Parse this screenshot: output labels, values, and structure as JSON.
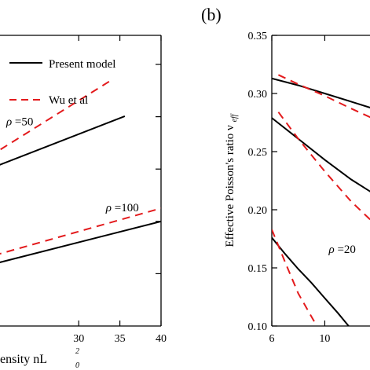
{
  "panel_label": "(b)",
  "chart_data": [
    {
      "type": "line",
      "title": "",
      "xlabel": "ensity nL",
      "xlabel_sup": "2",
      "xlabel_sub": "0",
      "ylabel": "",
      "xlim": [
        15,
        40
      ],
      "ylim": [
        0,
        10
      ],
      "xticks": [
        30,
        35,
        40
      ],
      "legend": {
        "placement": "top-left",
        "entries": [
          {
            "label": "Present model",
            "style": "solid",
            "color": "#000000"
          },
          {
            "label": "Wu et al",
            "style": "dashed",
            "color": "#e31a1c"
          }
        ]
      },
      "annotations": [
        {
          "text": "=50",
          "symbol": "ρ",
          "x": 21.2,
          "y": 6.9
        },
        {
          "text": "=100",
          "symbol": "ρ",
          "x": 33.3,
          "y": 3.95
        }
      ],
      "series": [
        {
          "style": "solid",
          "color": "#000000",
          "x": [
            15,
            35.6
          ],
          "y": [
            4.95,
            7.22
          ]
        },
        {
          "style": "dashed",
          "color": "#e31a1c",
          "x": [
            15,
            34.2
          ],
          "y": [
            5.1,
            8.5
          ]
        },
        {
          "style": "solid",
          "color": "#000000",
          "x": [
            15,
            40
          ],
          "y": [
            1.8,
            3.6
          ]
        },
        {
          "style": "dashed",
          "color": "#e31a1c",
          "x": [
            15,
            40
          ],
          "y": [
            2.05,
            4.05
          ]
        }
      ]
    },
    {
      "type": "line",
      "title": "",
      "xlabel": "",
      "ylabel": "Effective Poisson's ratio ν",
      "ylabel_sub": "eff",
      "xlim": [
        6,
        20
      ],
      "ylim": [
        0.1,
        0.35
      ],
      "xticks": [
        6,
        10
      ],
      "yticks": [
        0.1,
        0.15,
        0.2,
        0.25,
        0.3,
        0.35
      ],
      "ytick_labels": [
        "0.10",
        "0.15",
        "0.20",
        "0.25",
        "0.30",
        "0.35"
      ],
      "annotations": [
        {
          "text": "=20",
          "symbol": "ρ",
          "x": 10.3,
          "y": 0.163
        }
      ],
      "series": [
        {
          "style": "solid",
          "color": "#000000",
          "x": [
            6,
            8,
            10,
            12,
            14.5
          ],
          "y": [
            0.313,
            0.307,
            0.3,
            0.293,
            0.284
          ]
        },
        {
          "style": "dashed",
          "color": "#e31a1c",
          "x": [
            6.5,
            8,
            10,
            12,
            14.5
          ],
          "y": [
            0.316,
            0.308,
            0.298,
            0.287,
            0.274
          ]
        },
        {
          "style": "solid",
          "color": "#000000",
          "x": [
            6,
            8,
            10,
            12,
            14.5
          ],
          "y": [
            0.279,
            0.261,
            0.243,
            0.226,
            0.208
          ]
        },
        {
          "style": "dashed",
          "color": "#e31a1c",
          "x": [
            6.5,
            8,
            10,
            12,
            14.5
          ],
          "y": [
            0.284,
            0.261,
            0.233,
            0.207,
            0.18
          ]
        },
        {
          "style": "solid",
          "color": "#000000",
          "x": [
            6,
            7,
            8,
            9,
            10,
            11,
            11.8
          ],
          "y": [
            0.176,
            0.162,
            0.149,
            0.137,
            0.124,
            0.111,
            0.1
          ]
        },
        {
          "style": "dashed",
          "color": "#e31a1c",
          "x": [
            6,
            7,
            8,
            9.4
          ],
          "y": [
            0.183,
            0.155,
            0.128,
            0.1
          ]
        }
      ]
    }
  ]
}
